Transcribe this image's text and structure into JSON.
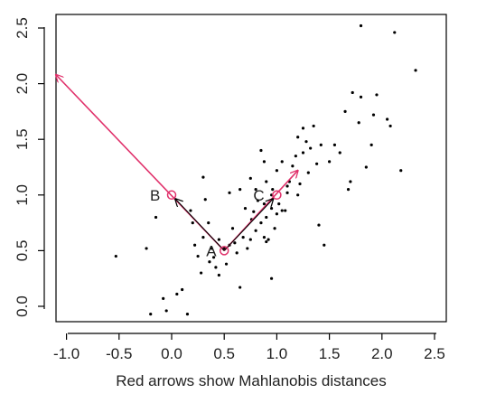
{
  "chart_data": {
    "type": "scatter",
    "title": "",
    "xlabel": "Red arrows show Mahlanobis distances",
    "ylabel": "",
    "xlim": [
      -1.1,
      2.55
    ],
    "ylim": [
      -0.1,
      2.58
    ],
    "x_ticks": [
      -1.0,
      -0.5,
      0.0,
      0.5,
      1.0,
      1.5,
      2.0,
      2.5
    ],
    "x_tick_labels": [
      "-1.0",
      "-0.5",
      "0.0",
      "0.5",
      "1.0",
      "1.5",
      "2.0",
      "2.5"
    ],
    "y_ticks": [
      0.0,
      0.5,
      1.0,
      1.5,
      2.0,
      2.5
    ],
    "y_tick_labels": [
      "0.0",
      "0.5",
      "1.0",
      "1.5",
      "2.0",
      "2.5"
    ],
    "grid": false,
    "colors": {
      "points": "#000000",
      "red_arrow": "#e0306a",
      "dark_arrow": "#000000"
    },
    "series": [
      {
        "type": "scatter",
        "x": [
          -0.53,
          -0.24,
          -0.2,
          -0.15,
          -0.08,
          -0.05,
          0.05,
          0.1,
          0.15,
          0.18,
          0.2,
          0.22,
          0.25,
          0.28,
          0.3,
          0.3,
          0.32,
          0.35,
          0.36,
          0.38,
          0.4,
          0.42,
          0.45,
          0.45,
          0.5,
          0.52,
          0.55,
          0.55,
          0.58,
          0.6,
          0.62,
          0.65,
          0.65,
          0.68,
          0.7,
          0.72,
          0.75,
          0.75,
          0.76,
          0.78,
          0.8,
          0.8,
          0.82,
          0.85,
          0.85,
          0.88,
          0.88,
          0.9,
          0.9,
          0.9,
          0.92,
          0.95,
          0.95,
          0.96,
          0.98,
          1.0,
          1.0,
          1.02,
          1.05,
          1.05,
          1.08,
          1.1,
          1.1,
          1.12,
          1.15,
          1.18,
          1.2,
          1.2,
          1.22,
          1.25,
          1.25,
          1.28,
          1.3,
          1.32,
          1.35,
          1.38,
          1.4,
          1.42,
          1.45,
          1.5,
          1.55,
          1.6,
          1.65,
          1.68,
          1.7,
          1.72,
          1.78,
          1.8,
          1.85,
          1.9,
          1.92,
          1.95,
          2.05,
          2.08,
          2.12,
          2.18,
          2.32,
          1.8,
          0.95,
          0.88
        ],
        "y": [
          0.45,
          0.52,
          -0.07,
          0.8,
          0.07,
          -0.04,
          0.11,
          0.15,
          -0.07,
          0.86,
          0.75,
          0.55,
          0.45,
          0.3,
          1.16,
          0.62,
          0.96,
          0.75,
          0.4,
          0.52,
          0.44,
          0.35,
          0.28,
          0.6,
          0.52,
          0.38,
          0.55,
          1.02,
          0.7,
          0.57,
          0.48,
          0.17,
          1.05,
          0.62,
          0.88,
          0.52,
          0.6,
          1.15,
          0.78,
          0.85,
          0.68,
          1.05,
          0.95,
          0.75,
          1.4,
          0.62,
          0.92,
          0.58,
          1.12,
          0.8,
          0.6,
          1.0,
          0.88,
          1.05,
          0.7,
          0.83,
          1.22,
          0.92,
          0.86,
          1.3,
          0.86,
          1.08,
          1.02,
          1.12,
          1.26,
          1.35,
          1.0,
          1.52,
          1.1,
          1.38,
          1.6,
          1.48,
          1.2,
          1.42,
          1.62,
          1.28,
          0.73,
          1.45,
          0.55,
          1.3,
          1.45,
          1.38,
          1.75,
          1.05,
          1.12,
          1.92,
          1.65,
          1.88,
          1.25,
          1.45,
          1.72,
          1.9,
          1.68,
          1.62,
          2.46,
          1.22,
          2.12,
          2.52,
          0.25,
          1.3
        ]
      }
    ],
    "labeled_points": [
      {
        "label": "A",
        "x": 0.5,
        "y": 0.5
      },
      {
        "label": "B",
        "x": 0.0,
        "y": 1.0
      },
      {
        "label": "C",
        "x": 1.0,
        "y": 1.0
      }
    ],
    "arrows": [
      {
        "from": "A",
        "to_x": -1.1,
        "to_y": 2.08,
        "color": "red",
        "via": "B"
      },
      {
        "from": "A",
        "to_x": 1.2,
        "to_y": 1.22,
        "color": "red",
        "via": "C"
      },
      {
        "from": "A",
        "to_x": 0.0,
        "to_y": 1.0,
        "color": "dark"
      },
      {
        "from": "A",
        "to_x": 1.0,
        "to_y": 1.0,
        "color": "dark"
      }
    ]
  }
}
